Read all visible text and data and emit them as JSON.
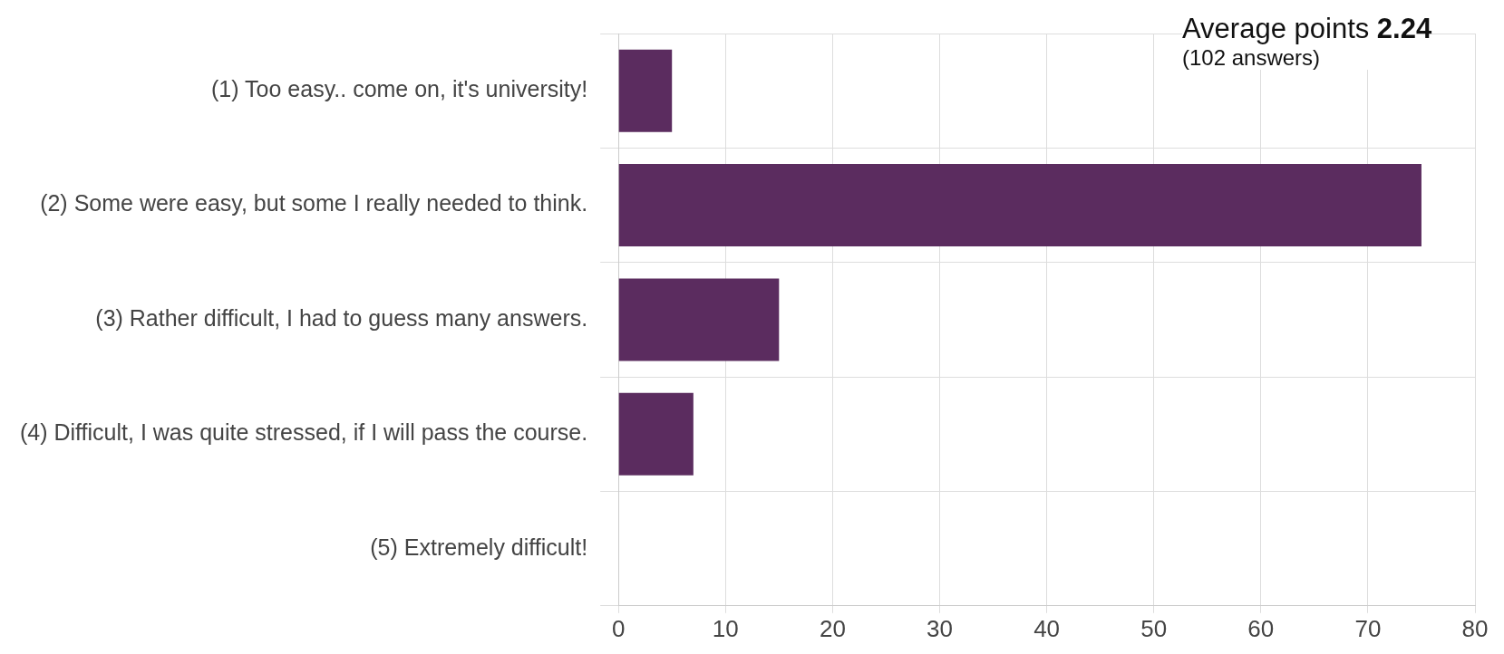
{
  "chart_data": {
    "type": "bar",
    "orientation": "horizontal",
    "categories": [
      "(1) Too easy.. come on, it's university!",
      "(2) Some were easy, but some I really needed to think.",
      "(3) Rather difficult, I had to guess many answers.",
      "(4) Difficult, I was quite stressed, if I will pass the course.",
      "(5) Extremely difficult!"
    ],
    "values": [
      5,
      75,
      15,
      7,
      0
    ],
    "color": "#5b2c5f",
    "xlim": [
      0,
      80
    ],
    "xticks": [
      0,
      10,
      20,
      30,
      40,
      50,
      60,
      70,
      80
    ],
    "grid": true,
    "annotations": [
      "Average points 2.24",
      "(102 answers)"
    ]
  }
}
